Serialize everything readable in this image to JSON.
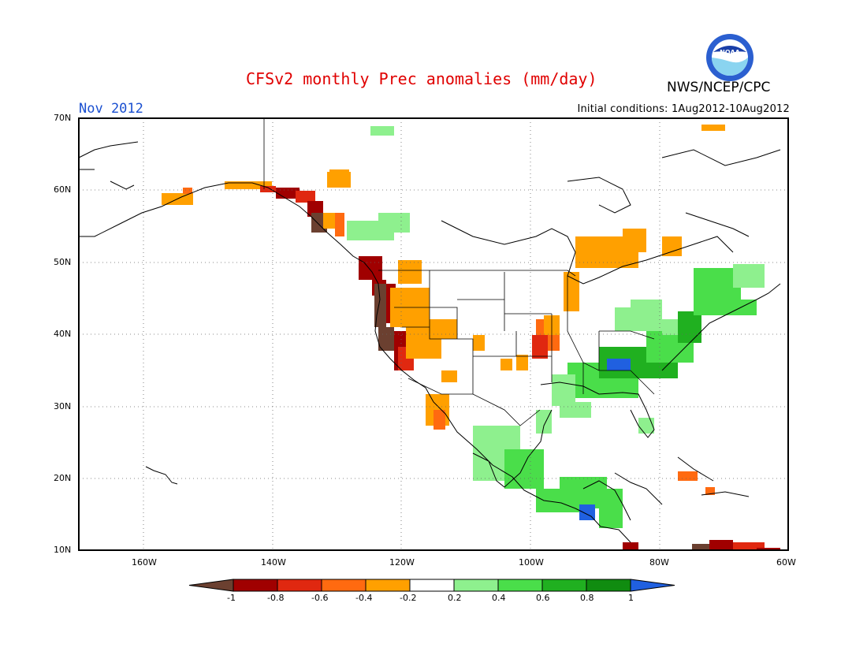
{
  "header": {
    "title": "CFSv2 monthly Prec anomalies (mm/day)",
    "month": "Nov 2012",
    "initial_conditions": "Initial conditions: 1Aug2012-10Aug2012",
    "agency": "NWS/NCEP/CPC",
    "logo_text": "NOAA"
  },
  "map": {
    "lat_labels": [
      "70N",
      "60N",
      "50N",
      "40N",
      "30N",
      "20N",
      "10N"
    ],
    "lon_labels": [
      "160W",
      "140W",
      "120W",
      "100W",
      "80W",
      "60W"
    ],
    "grid": true,
    "region": "North America"
  },
  "legend": {
    "labels": [
      "-1",
      "-0.8",
      "-0.6",
      "-0.4",
      "-0.2",
      "0.2",
      "0.4",
      "0.6",
      "0.8",
      "1"
    ],
    "colors": [
      "#6b4030",
      "#a00000",
      "#e02810",
      "#ff6a10",
      "#ffa000",
      "#ffffff",
      "#8ef08e",
      "#4ade4a",
      "#20b020",
      "#108c10",
      "#2060e0"
    ]
  }
}
